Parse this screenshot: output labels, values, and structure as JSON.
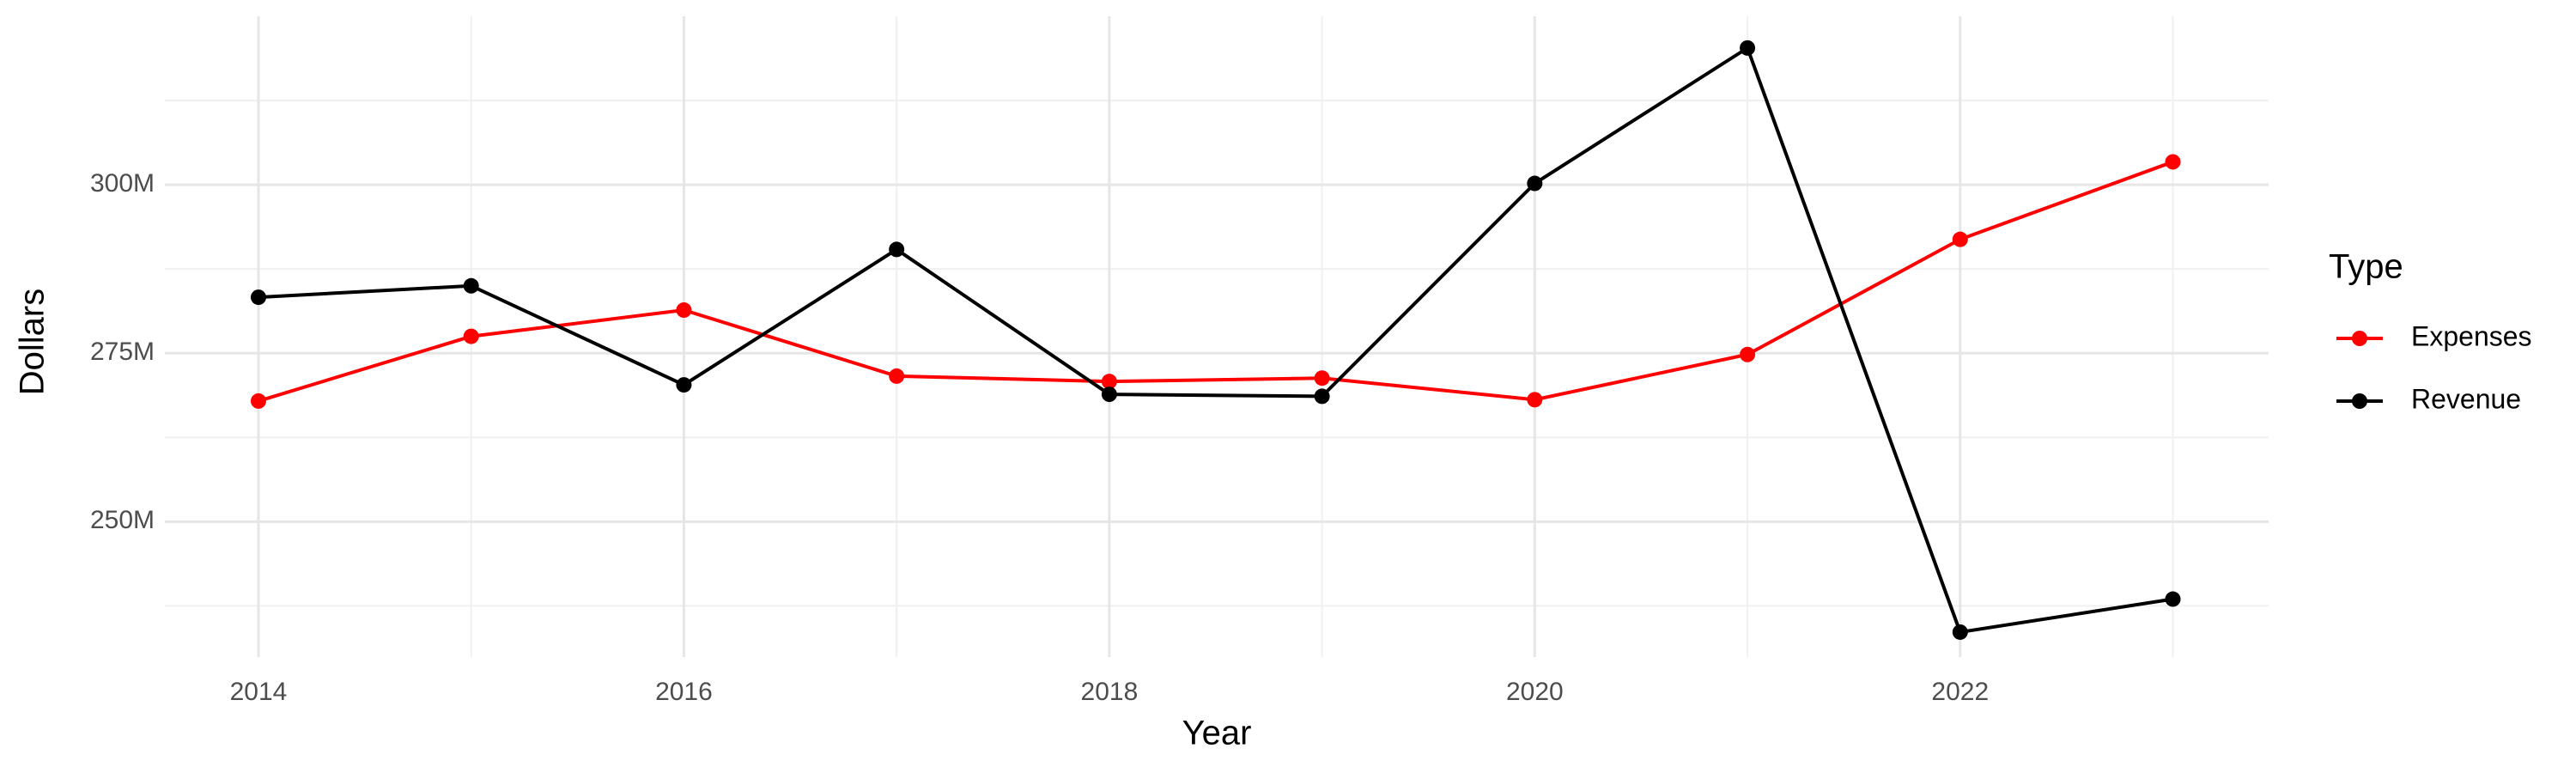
{
  "chart_data": {
    "type": "line",
    "x_label": "Year",
    "y_label": "Dollars",
    "legend_title": "Type",
    "x": [
      2014,
      2015,
      2016,
      2017,
      2018,
      2019,
      2020,
      2021,
      2022,
      2023
    ],
    "series": [
      {
        "name": "Expenses",
        "color": "#ff0000",
        "values": [
          267900000,
          277500000,
          281400000,
          271600000,
          270800000,
          271300000,
          268100000,
          274800000,
          291900000,
          303400000
        ]
      },
      {
        "name": "Revenue",
        "color": "#000000",
        "values": [
          283300000,
          285000000,
          270300000,
          290400000,
          268900000,
          268600000,
          300200000,
          320300000,
          233600000,
          238500000
        ]
      }
    ],
    "xlim": [
      2013.56,
      2023.45
    ],
    "xticks": [
      2014,
      2016,
      2018,
      2020,
      2022
    ],
    "ylim": [
      229900000,
      325000000
    ],
    "yticks": [
      {
        "value": 250000000,
        "label": "250M"
      },
      {
        "value": 275000000,
        "label": "275M"
      },
      {
        "value": 300000000,
        "label": "300M"
      }
    ],
    "grid": true,
    "legend": "right"
  }
}
